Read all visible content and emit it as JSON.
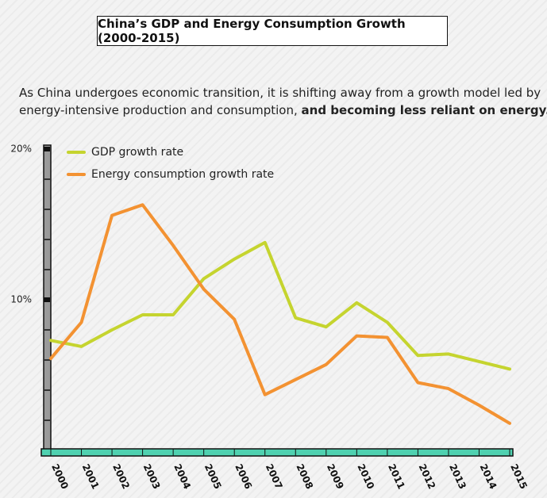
{
  "chart_data": {
    "type": "line",
    "title": "China’s GDP and Energy Consumption Growth (2000-2015)",
    "subtitle": [
      "As China undergoes economic transition, it is shifting away from a growth model led by",
      "energy-intensive production and consumption, ",
      "and becoming less reliant on energy."
    ],
    "categories": [
      "2000",
      "2001",
      "2002",
      "2003",
      "2004",
      "2005",
      "2006",
      "2007",
      "2008",
      "2009",
      "2010",
      "2011",
      "2012",
      "2013",
      "2014",
      "2015"
    ],
    "series": [
      {
        "name": "GDP growth rate",
        "color": "#c5d42f",
        "values": [
          7.3,
          6.9,
          8.0,
          9.0,
          9.0,
          11.4,
          12.7,
          13.8,
          8.8,
          8.2,
          9.8,
          8.5,
          6.3,
          6.4,
          5.9,
          5.4
        ]
      },
      {
        "name": "Energy consumption growth rate",
        "color": "#f39232",
        "values": [
          6.1,
          8.5,
          15.6,
          16.3,
          13.6,
          10.7,
          8.7,
          3.7,
          4.7,
          5.7,
          7.6,
          7.5,
          4.5,
          4.1,
          3.0,
          1.8
        ]
      }
    ],
    "ylim": [
      0,
      20.5
    ],
    "yticks": [
      {
        "value": 10,
        "label": "10%"
      },
      {
        "value": 20,
        "label": "20%"
      }
    ],
    "yminorticks": [
      2,
      4,
      6,
      8,
      12,
      14,
      16,
      18
    ],
    "legend": "top-left"
  }
}
